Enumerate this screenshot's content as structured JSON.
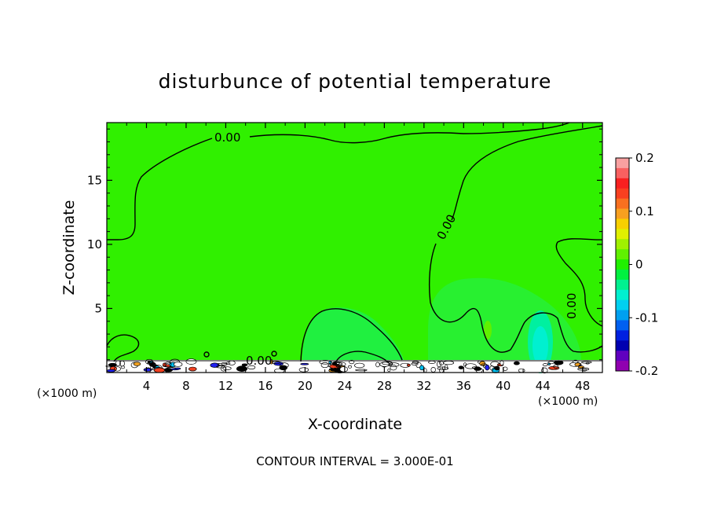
{
  "chart_data": {
    "type": "contour",
    "title": "disturbunce of potential temperature",
    "xlabel": "X-coordinate",
    "ylabel": "Z-coordinate",
    "x_unit": "(×1000 m)",
    "xlim": [
      0,
      50
    ],
    "ylim": [
      0,
      19.5
    ],
    "xticks": [
      4,
      8,
      12,
      16,
      20,
      24,
      28,
      32,
      36,
      40,
      44,
      48
    ],
    "yticks": [
      5,
      10,
      15
    ],
    "contour_labels": [
      "0.00",
      "0.00",
      "0.00",
      "0.00"
    ],
    "contour_interval_text": "CONTOUR INTERVAL = 3.000E-01",
    "colorbar": {
      "range": [
        -0.2,
        0.2
      ],
      "tick_labels": [
        "0.2",
        "0.1",
        "0",
        "-0.1",
        "-0.2"
      ],
      "tick_values": [
        0.2,
        0.1,
        0,
        -0.1,
        -0.2
      ],
      "colors": [
        "#f8a0a0",
        "#f86060",
        "#f82020",
        "#f84020",
        "#f87020",
        "#f8a020",
        "#f8d000",
        "#e0f000",
        "#a0f000",
        "#60f000",
        "#20f000",
        "#00f040",
        "#00f090",
        "#00f0d0",
        "#00d0f0",
        "#00a0f0",
        "#0060f0",
        "#0020e0",
        "#0000b0",
        "#6000c0",
        "#9000b0"
      ]
    }
  }
}
